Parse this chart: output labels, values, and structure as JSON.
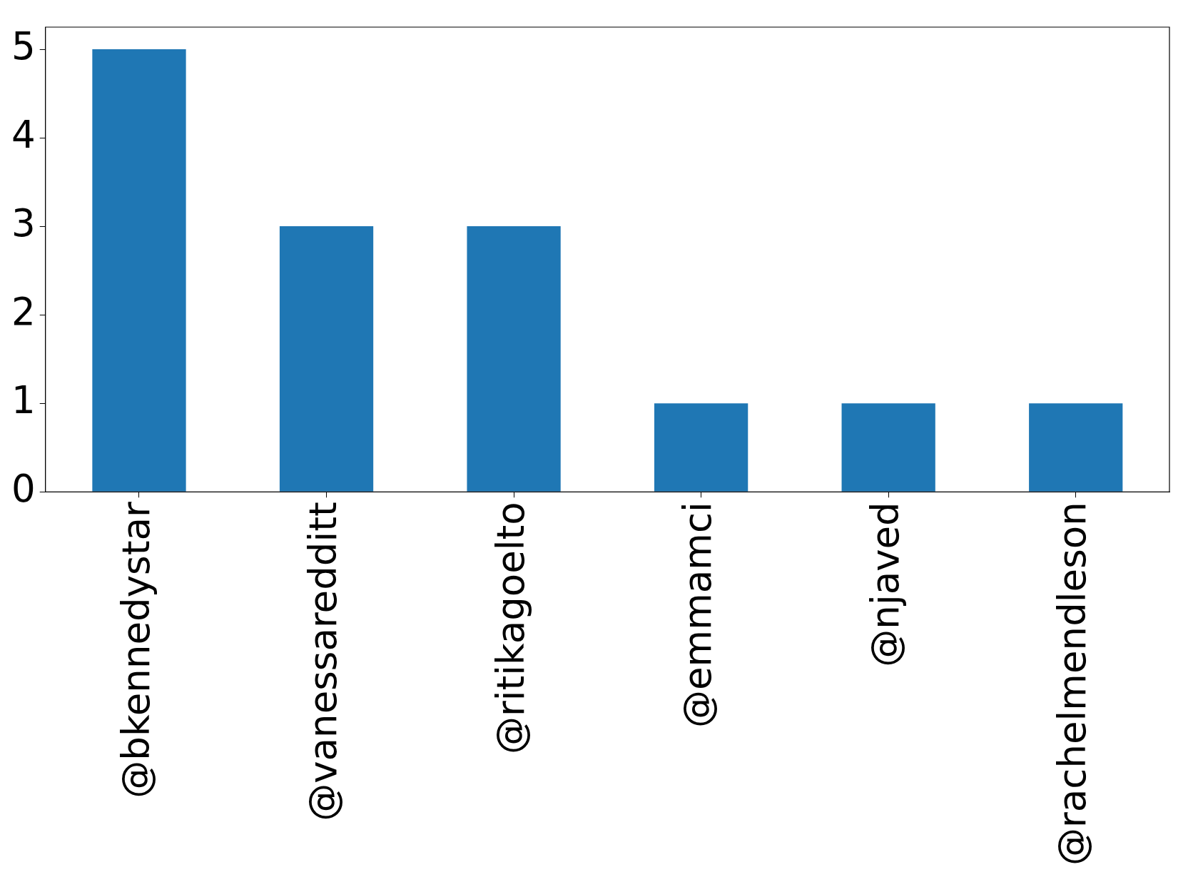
{
  "chart_data": {
    "type": "bar",
    "categories": [
      "@bkennedystar",
      "@vanessaredditt",
      "@ritikagoelto",
      "@emmamci",
      "@njaved",
      "@rachelmendleson"
    ],
    "values": [
      5,
      3,
      3,
      1,
      1,
      1
    ],
    "color": "#1f77b4",
    "ylim": [
      0,
      5.25
    ],
    "yticks": [
      0,
      1,
      2,
      3,
      4,
      5
    ],
    "grid": false,
    "legend": false
  }
}
